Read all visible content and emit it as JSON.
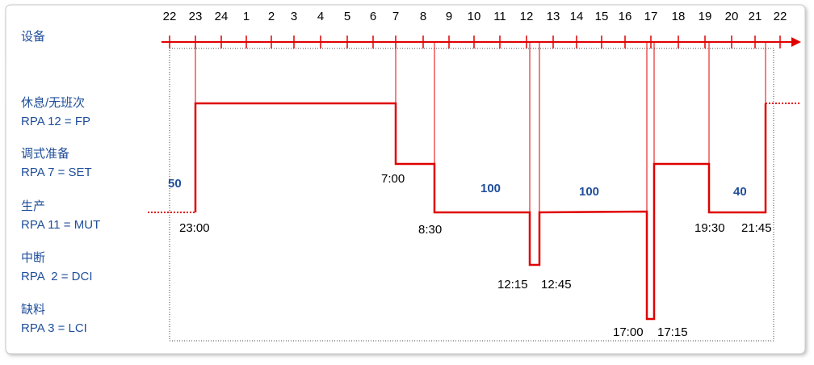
{
  "header": {
    "title": "设备"
  },
  "hours": [
    "22",
    "23",
    "24",
    "1",
    "2",
    "3",
    "4",
    "5",
    "6",
    "7",
    "8",
    "9",
    "10",
    "11",
    "12",
    "13",
    "14",
    "15",
    "16",
    "17",
    "18",
    "19",
    "20",
    "21",
    "22"
  ],
  "rows": [
    {
      "label": "休息/无班次",
      "code": "RPA 12 = FP"
    },
    {
      "label": "调式准备",
      "code": "RPA 7 = SET"
    },
    {
      "label": "生产",
      "code": "RPA 11 = MUT"
    },
    {
      "label": "中断",
      "code": "RPA  2 = DCI"
    },
    {
      "label": "缺料",
      "code": "RPA 3 = LCI"
    }
  ],
  "times": [
    "23:00",
    "7:00",
    "8:30",
    "12:15",
    "12:45",
    "17:00",
    "17:15",
    "19:30",
    "21:45"
  ],
  "quantities": [
    50,
    100,
    100,
    40
  ]
}
